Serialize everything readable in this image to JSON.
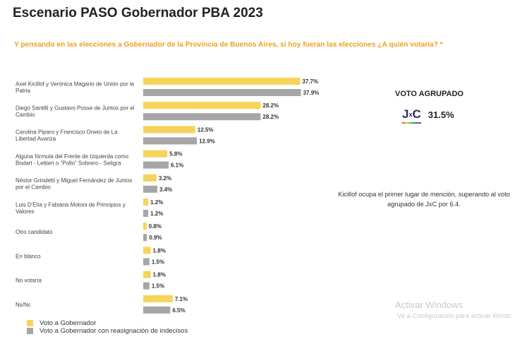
{
  "title": "Escenario PASO Gobernador PBA 2023",
  "question": "Y pensando en las elecciones a Gobernador de la Provincia de Buenos Aires, si hoy fueran las elecciones ¿A quién votaría? *",
  "side": {
    "title": "VOTO AGRUPADO",
    "logo_text": {
      "j": "J",
      "x": "x",
      "c": "C"
    },
    "value": "31.5%",
    "note": "Kicillof ocupa el primer lugar de mención, superando al voto agrupado de JxC por 6.4."
  },
  "watermark": {
    "line1": "Activar Windows",
    "line2": "Ve a Configuración para activar Windc"
  },
  "colors": {
    "series1": "#f6d35b",
    "series2": "#a6a6a6"
  },
  "chart_data": {
    "type": "bar",
    "orientation": "horizontal",
    "categories": [
      "Axel Kicillof y Verónica Magario de Unión por la Patria",
      "Diego Santilli y Gustavo Posse de Juntos por el Cambio",
      "Carolina Piparo y Francisco Oneto de La Libertad Avanza",
      "Alguna fórmula del Frente de Izquierda como Bodart - Lettieri o “Pollo” Sobrero - Seligra",
      "Néstor Grindetti y Miguel Fernández de Juntos por el Cambio",
      "Luis D'Elía y Fabiana Motoni de Principios y Valores",
      "Otro candidato",
      "En blanco",
      "No votaría",
      "Ns/Nc"
    ],
    "series": [
      {
        "name": "Voto a Gobernador",
        "values": [
          37.7,
          28.2,
          12.5,
          5.8,
          3.2,
          1.2,
          0.8,
          1.8,
          1.8,
          7.1
        ],
        "labels": [
          "37.7%",
          "28.2%",
          "12.5%",
          "5.8%",
          "3.2%",
          "1.2%",
          "0.8%",
          "1.8%",
          "1.8%",
          "7.1%"
        ]
      },
      {
        "name": "Voto a Gobernador con reasignación de indecisos",
        "values": [
          37.9,
          28.2,
          12.9,
          6.1,
          3.4,
          1.2,
          0.9,
          1.5,
          1.5,
          6.5
        ],
        "labels": [
          "37.9%",
          "28.2%",
          "12.9%",
          "6.1%",
          "3.4%",
          "1.2%",
          "0.9%",
          "1.5%",
          "1.5%",
          "6.5%"
        ]
      }
    ],
    "legend_position": "bottom-left",
    "grid": false
  }
}
